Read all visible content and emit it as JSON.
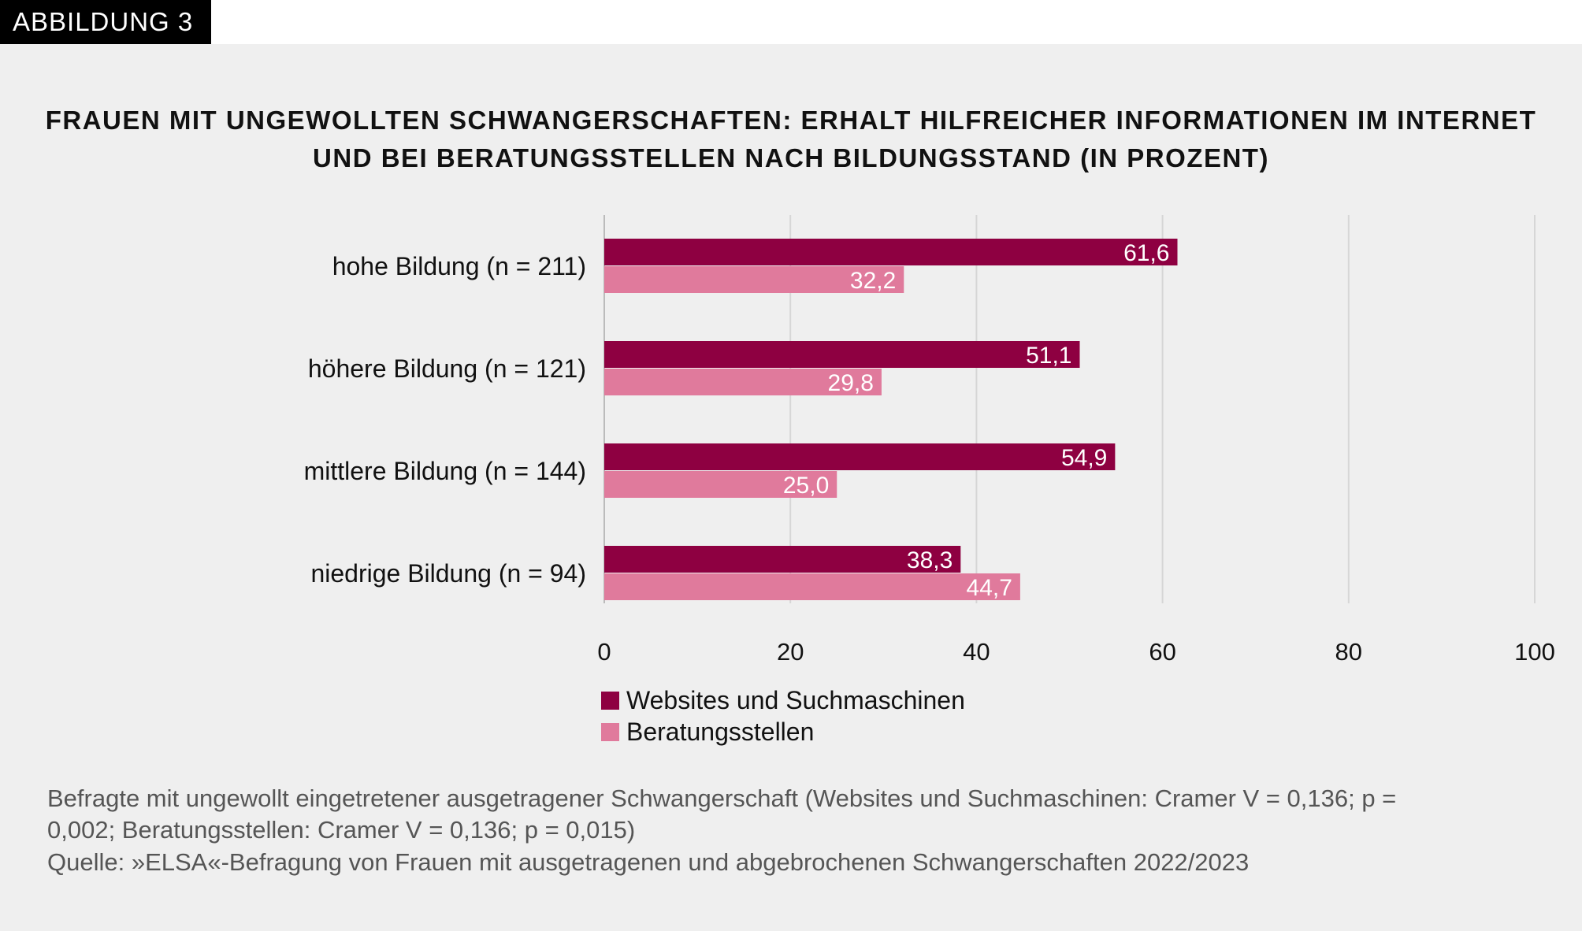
{
  "badge": "ABBILDUNG 3",
  "chart_data": {
    "type": "bar",
    "orientation": "horizontal",
    "title": [
      "FRAUEN MIT UNGEWOLLTEN SCHWANGERSCHAFTEN: ERHALT HILFREICHER INFORMATIONEN IM INTERNET",
      "UND BEI BERATUNGSSTELLEN NACH BILDUNGSSTAND (IN PROZENT)"
    ],
    "categories": [
      "hohe Bildung (n = 211)",
      "höhere Bildung (n = 121)",
      "mittlere Bildung (n = 144)",
      "niedrige Bildung (n = 94)"
    ],
    "series": [
      {
        "name": "Websites und Suchmaschinen",
        "color": "#8e0041",
        "values": [
          61.6,
          51.1,
          54.9,
          38.3
        ],
        "labels": [
          "61,6",
          "51,1",
          "54,9",
          "38,3"
        ]
      },
      {
        "name": "Beratungsstellen",
        "color": "#e07a9c",
        "values": [
          32.2,
          29.8,
          25.0,
          44.7
        ],
        "labels": [
          "32,2",
          "29,8",
          "25,0",
          "44,7"
        ]
      }
    ],
    "xlim": [
      0,
      100
    ],
    "xticks": [
      "0",
      "20",
      "40",
      "60",
      "80",
      "100"
    ],
    "grid": true,
    "legend_position": "bottom"
  },
  "footnote": [
    "Befragte mit ungewollt eingetretener ausgetragener Schwangerschaft (Websites und Suchmaschinen: Cramer V = 0,136; p =",
    "0,002; Beratungsstellen: Cramer V = 0,136; p = 0,015)",
    "Quelle: »ELSA«-Befragung von Frauen mit ausgetragenen und abgebrochenen Schwangerschaften 2022/2023"
  ]
}
